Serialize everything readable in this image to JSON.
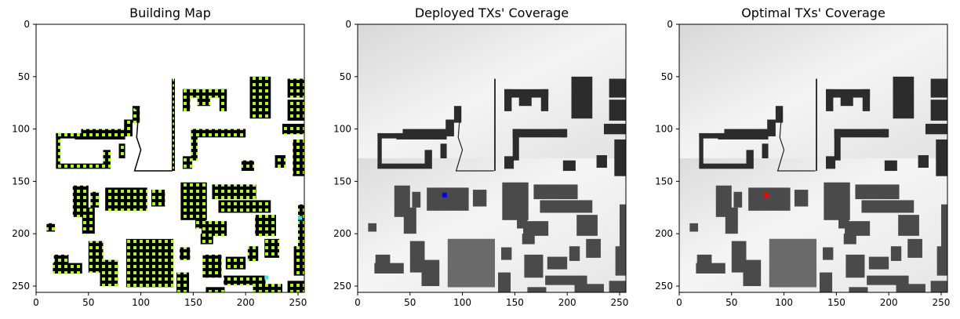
{
  "chart_data": [
    {
      "type": "heatmap",
      "title": "Building Map",
      "xlabel": "",
      "ylabel": "",
      "xlim": [
        0,
        256
      ],
      "ylim": [
        256,
        0
      ],
      "xticks": [
        0,
        50,
        100,
        150,
        200,
        250
      ],
      "yticks": [
        0,
        50,
        100,
        150,
        200,
        250
      ],
      "grid": false,
      "colors": {
        "building": "#000000",
        "marker": "#a6ff00",
        "marker_alt": "#2ee6ff",
        "background": "#ffffff"
      }
    },
    {
      "type": "heatmap",
      "title": "Deployed TXs' Coverage",
      "xlabel": "",
      "ylabel": "",
      "xlim": [
        0,
        256
      ],
      "ylim": [
        256,
        0
      ],
      "xticks": [
        0,
        50,
        100,
        150,
        200,
        250
      ],
      "yticks": [
        0,
        50,
        100,
        150,
        200,
        250
      ],
      "grid": false,
      "tx": {
        "x": 83,
        "y": 163,
        "color": "#0000ff"
      }
    },
    {
      "type": "heatmap",
      "title": "Optimal TXs' Coverage",
      "xlabel": "",
      "ylabel": "",
      "xlim": [
        0,
        256
      ],
      "ylim": [
        256,
        0
      ],
      "xticks": [
        0,
        50,
        100,
        150,
        200,
        250
      ],
      "yticks": [
        0,
        50,
        100,
        150,
        200,
        250
      ],
      "grid": false,
      "tx": {
        "x": 83,
        "y": 163,
        "color": "#ff0000"
      }
    }
  ]
}
